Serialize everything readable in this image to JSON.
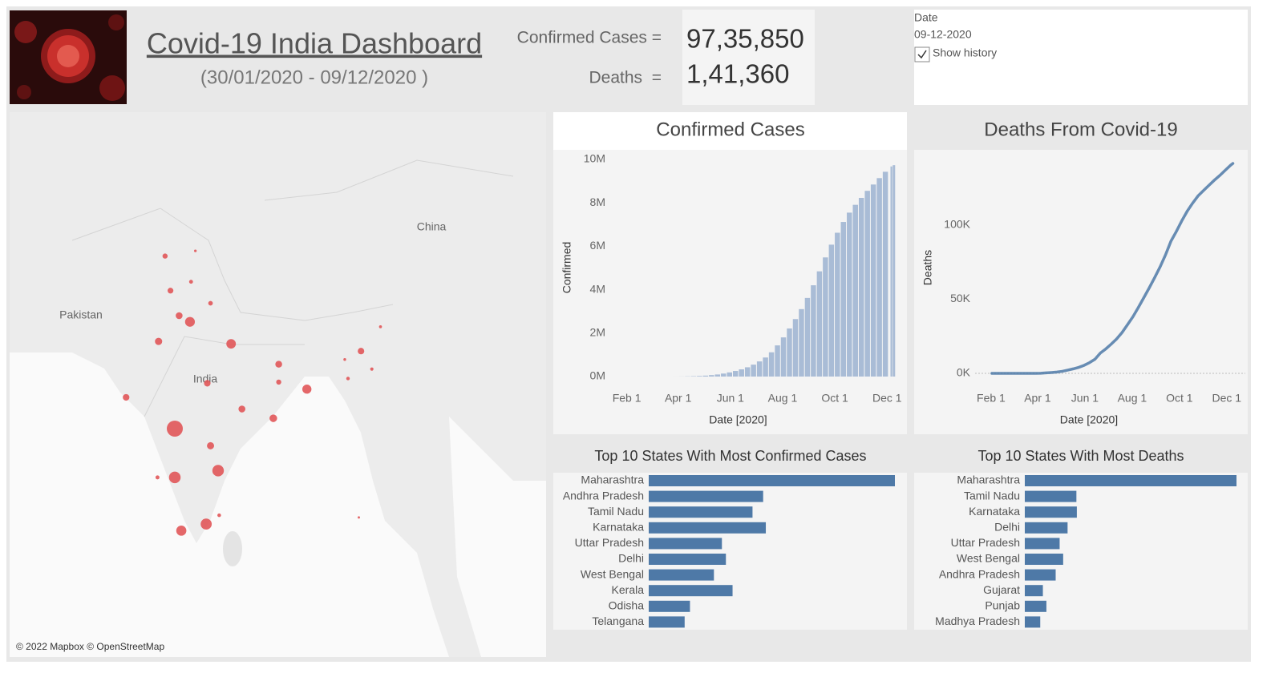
{
  "header": {
    "title": "Covid-19 India Dashboard",
    "subtitle": "(30/01/2020 - 09/12/2020 )",
    "confirmed_label": "Confirmed Cases =",
    "confirmed_value": "97,35,850",
    "deaths_label": "Deaths  =",
    "deaths_value": "1,41,360"
  },
  "filter": {
    "label": "Date",
    "value": "09-12-2020",
    "checkbox": "Show history"
  },
  "chart_data": [
    {
      "type": "bubble-map",
      "color": "#e15759",
      "labels": [
        "China",
        "Pakistan",
        "India"
      ],
      "attribution": "© 2022 Mapbox © OpenStreetMap",
      "lon": [
        75.7,
        75.7,
        79.7,
        78.6,
        76.3,
        77.1,
        80.9,
        87.9,
        84.8,
        79.0,
        74.2,
        81.9,
        76.1,
        85.3,
        71.2,
        78.7,
        92.9,
        75.3,
        74.8,
        85.3,
        79.0,
        74.1,
        79.8,
        91.7,
        77.2,
        77.6,
        93.9,
        91.4,
        92.7,
        94.7
      ],
      "lat": [
        19.6,
        15.3,
        15.9,
        11.1,
        10.5,
        28.6,
        26.8,
        23.0,
        20.5,
        18.1,
        27.0,
        21.3,
        29.1,
        25.1,
        22.3,
        23.5,
        26.2,
        31.1,
        33.8,
        23.6,
        30.1,
        15.3,
        11.9,
        23.9,
        31.8,
        34.2,
        24.7,
        25.5,
        11.7,
        28.2
      ],
      "values": [
        1850000,
        893000,
        873000,
        795000,
        643000,
        598000,
        555000,
        505000,
        321000,
        275000,
        282000,
        250000,
        245000,
        240000,
        222000,
        216000,
        213000,
        156000,
        112000,
        110000,
        80000,
        49000,
        37000,
        33000,
        47000,
        9000,
        26000,
        12000,
        4700,
        16000
      ]
    },
    {
      "type": "bar",
      "title": "Confirmed Cases",
      "xlabel": "Date [2020]",
      "ylabel": "Confirmed",
      "color": "#a9bcd6",
      "x": [
        "2020-02-02",
        "2020-02-09",
        "2020-02-16",
        "2020-02-23",
        "2020-03-01",
        "2020-03-08",
        "2020-03-15",
        "2020-03-22",
        "2020-03-29",
        "2020-04-05",
        "2020-04-12",
        "2020-04-19",
        "2020-04-26",
        "2020-05-03",
        "2020-05-10",
        "2020-05-17",
        "2020-05-24",
        "2020-05-31",
        "2020-06-07",
        "2020-06-14",
        "2020-06-21",
        "2020-06-28",
        "2020-07-05",
        "2020-07-12",
        "2020-07-19",
        "2020-07-26",
        "2020-08-02",
        "2020-08-09",
        "2020-08-16",
        "2020-08-23",
        "2020-08-30",
        "2020-09-06",
        "2020-09-13",
        "2020-09-20",
        "2020-09-27",
        "2020-10-04",
        "2020-10-11",
        "2020-10-18",
        "2020-10-25",
        "2020-11-01",
        "2020-11-08",
        "2020-11-15",
        "2020-11-22",
        "2020-11-29",
        "2020-12-06",
        "2020-12-09"
      ],
      "values": [
        2,
        3,
        3,
        3,
        3,
        39,
        107,
        396,
        1024,
        3577,
        9152,
        17265,
        27892,
        42533,
        67161,
        95698,
        138536,
        190535,
        256611,
        332424,
        426910,
        549197,
        697413,
        878254,
        1118043,
        1435453,
        1803695,
        2215074,
        2647663,
        3106348,
        3621245,
        4204613,
        4846427,
        5487580,
        6074702,
        6623815,
        7120538,
        7550273,
        7909959,
        8229313,
        8553657,
        8845127,
        9139865,
        9431691,
        9677203,
        9735850
      ],
      "xlim": [
        "2020-01-23",
        "2020-12-12"
      ],
      "xticks": [
        {
          "value": "2020-02-01",
          "label": "Feb 1"
        },
        {
          "value": "2020-04-01",
          "label": "Apr 1"
        },
        {
          "value": "2020-06-01",
          "label": "Jun 1"
        },
        {
          "value": "2020-08-01",
          "label": "Aug 1"
        },
        {
          "value": "2020-10-01",
          "label": "Oct 1"
        },
        {
          "value": "2020-12-01",
          "label": "Dec 1"
        }
      ],
      "ylim": [
        0,
        10000000
      ],
      "yticks": [
        {
          "value": 0,
          "label": "0M"
        },
        {
          "value": 2000000,
          "label": "2M"
        },
        {
          "value": 4000000,
          "label": "4M"
        },
        {
          "value": 6000000,
          "label": "6M"
        },
        {
          "value": 8000000,
          "label": "8M"
        },
        {
          "value": 10000000,
          "label": "10M"
        }
      ]
    },
    {
      "type": "line",
      "title": "Deaths From Covid-19",
      "xlabel": "Date [2020]",
      "ylabel": "Deaths",
      "color": "#4e79a7",
      "x": [
        "2020-02-02",
        "2020-02-09",
        "2020-02-16",
        "2020-02-23",
        "2020-03-01",
        "2020-03-08",
        "2020-03-15",
        "2020-03-22",
        "2020-03-29",
        "2020-04-05",
        "2020-04-12",
        "2020-04-19",
        "2020-04-26",
        "2020-05-03",
        "2020-05-10",
        "2020-05-17",
        "2020-05-24",
        "2020-05-31",
        "2020-06-07",
        "2020-06-14",
        "2020-06-21",
        "2020-06-28",
        "2020-07-05",
        "2020-07-12",
        "2020-07-19",
        "2020-07-26",
        "2020-08-02",
        "2020-08-09",
        "2020-08-16",
        "2020-08-23",
        "2020-08-30",
        "2020-09-06",
        "2020-09-13",
        "2020-09-20",
        "2020-09-27",
        "2020-10-04",
        "2020-10-11",
        "2020-10-18",
        "2020-10-25",
        "2020-11-01",
        "2020-11-08",
        "2020-11-15",
        "2020-11-22",
        "2020-11-29",
        "2020-12-06",
        "2020-12-09"
      ],
      "values": [
        0,
        0,
        0,
        0,
        0,
        0,
        2,
        7,
        27,
        83,
        308,
        559,
        881,
        1373,
        2212,
        3025,
        4021,
        5394,
        7200,
        9520,
        13699,
        16475,
        19693,
        23174,
        27497,
        32771,
        38135,
        44386,
        50921,
        57542,
        64469,
        71642,
        79722,
        88935,
        95542,
        102685,
        109150,
        114610,
        119502,
        123097,
        126611,
        130070,
        133227,
        136696,
        140182,
        141360
      ],
      "xlim": [
        "2020-01-01",
        "2020-12-25"
      ],
      "xticks": [
        {
          "value": "2020-02-01",
          "label": "Feb 1"
        },
        {
          "value": "2020-04-01",
          "label": "Apr 1"
        },
        {
          "value": "2020-06-01",
          "label": "Jun 1"
        },
        {
          "value": "2020-08-01",
          "label": "Aug 1"
        },
        {
          "value": "2020-10-01",
          "label": "Oct 1"
        },
        {
          "value": "2020-12-01",
          "label": "Dec 1"
        }
      ],
      "ylim": [
        0,
        150000
      ],
      "yticks": [
        {
          "value": 0,
          "label": "0K"
        },
        {
          "value": 50000,
          "label": "50K"
        },
        {
          "value": 100000,
          "label": "100K"
        }
      ],
      "zero_line": true
    },
    {
      "type": "hbar",
      "title": "Top 10 States With Most Confirmed Cases",
      "color": "#4e79a7",
      "categories": [
        "Maharashtra",
        "Andhra Pradesh",
        "Tamil Nadu",
        "Karnataka",
        "Uttar Pradesh",
        "Delhi",
        "West Bengal",
        "Kerala",
        "Odisha",
        "Telangana"
      ],
      "values": [
        1850000,
        860000,
        780000,
        880000,
        550000,
        580000,
        490000,
        630000,
        310000,
        270000
      ]
    },
    {
      "type": "hbar",
      "title": "Top 10 States With Most Deaths",
      "color": "#4e79a7",
      "categories": [
        "Maharashtra",
        "Tamil Nadu",
        "Karnataka",
        "Delhi",
        "Uttar Pradesh",
        "West Bengal",
        "Andhra Pradesh",
        "Gujarat",
        "Punjab",
        "Madhya Pradesh"
      ],
      "values": [
        48000,
        11700,
        11800,
        9700,
        7900,
        8700,
        7000,
        4100,
        4900,
        3500
      ]
    }
  ]
}
